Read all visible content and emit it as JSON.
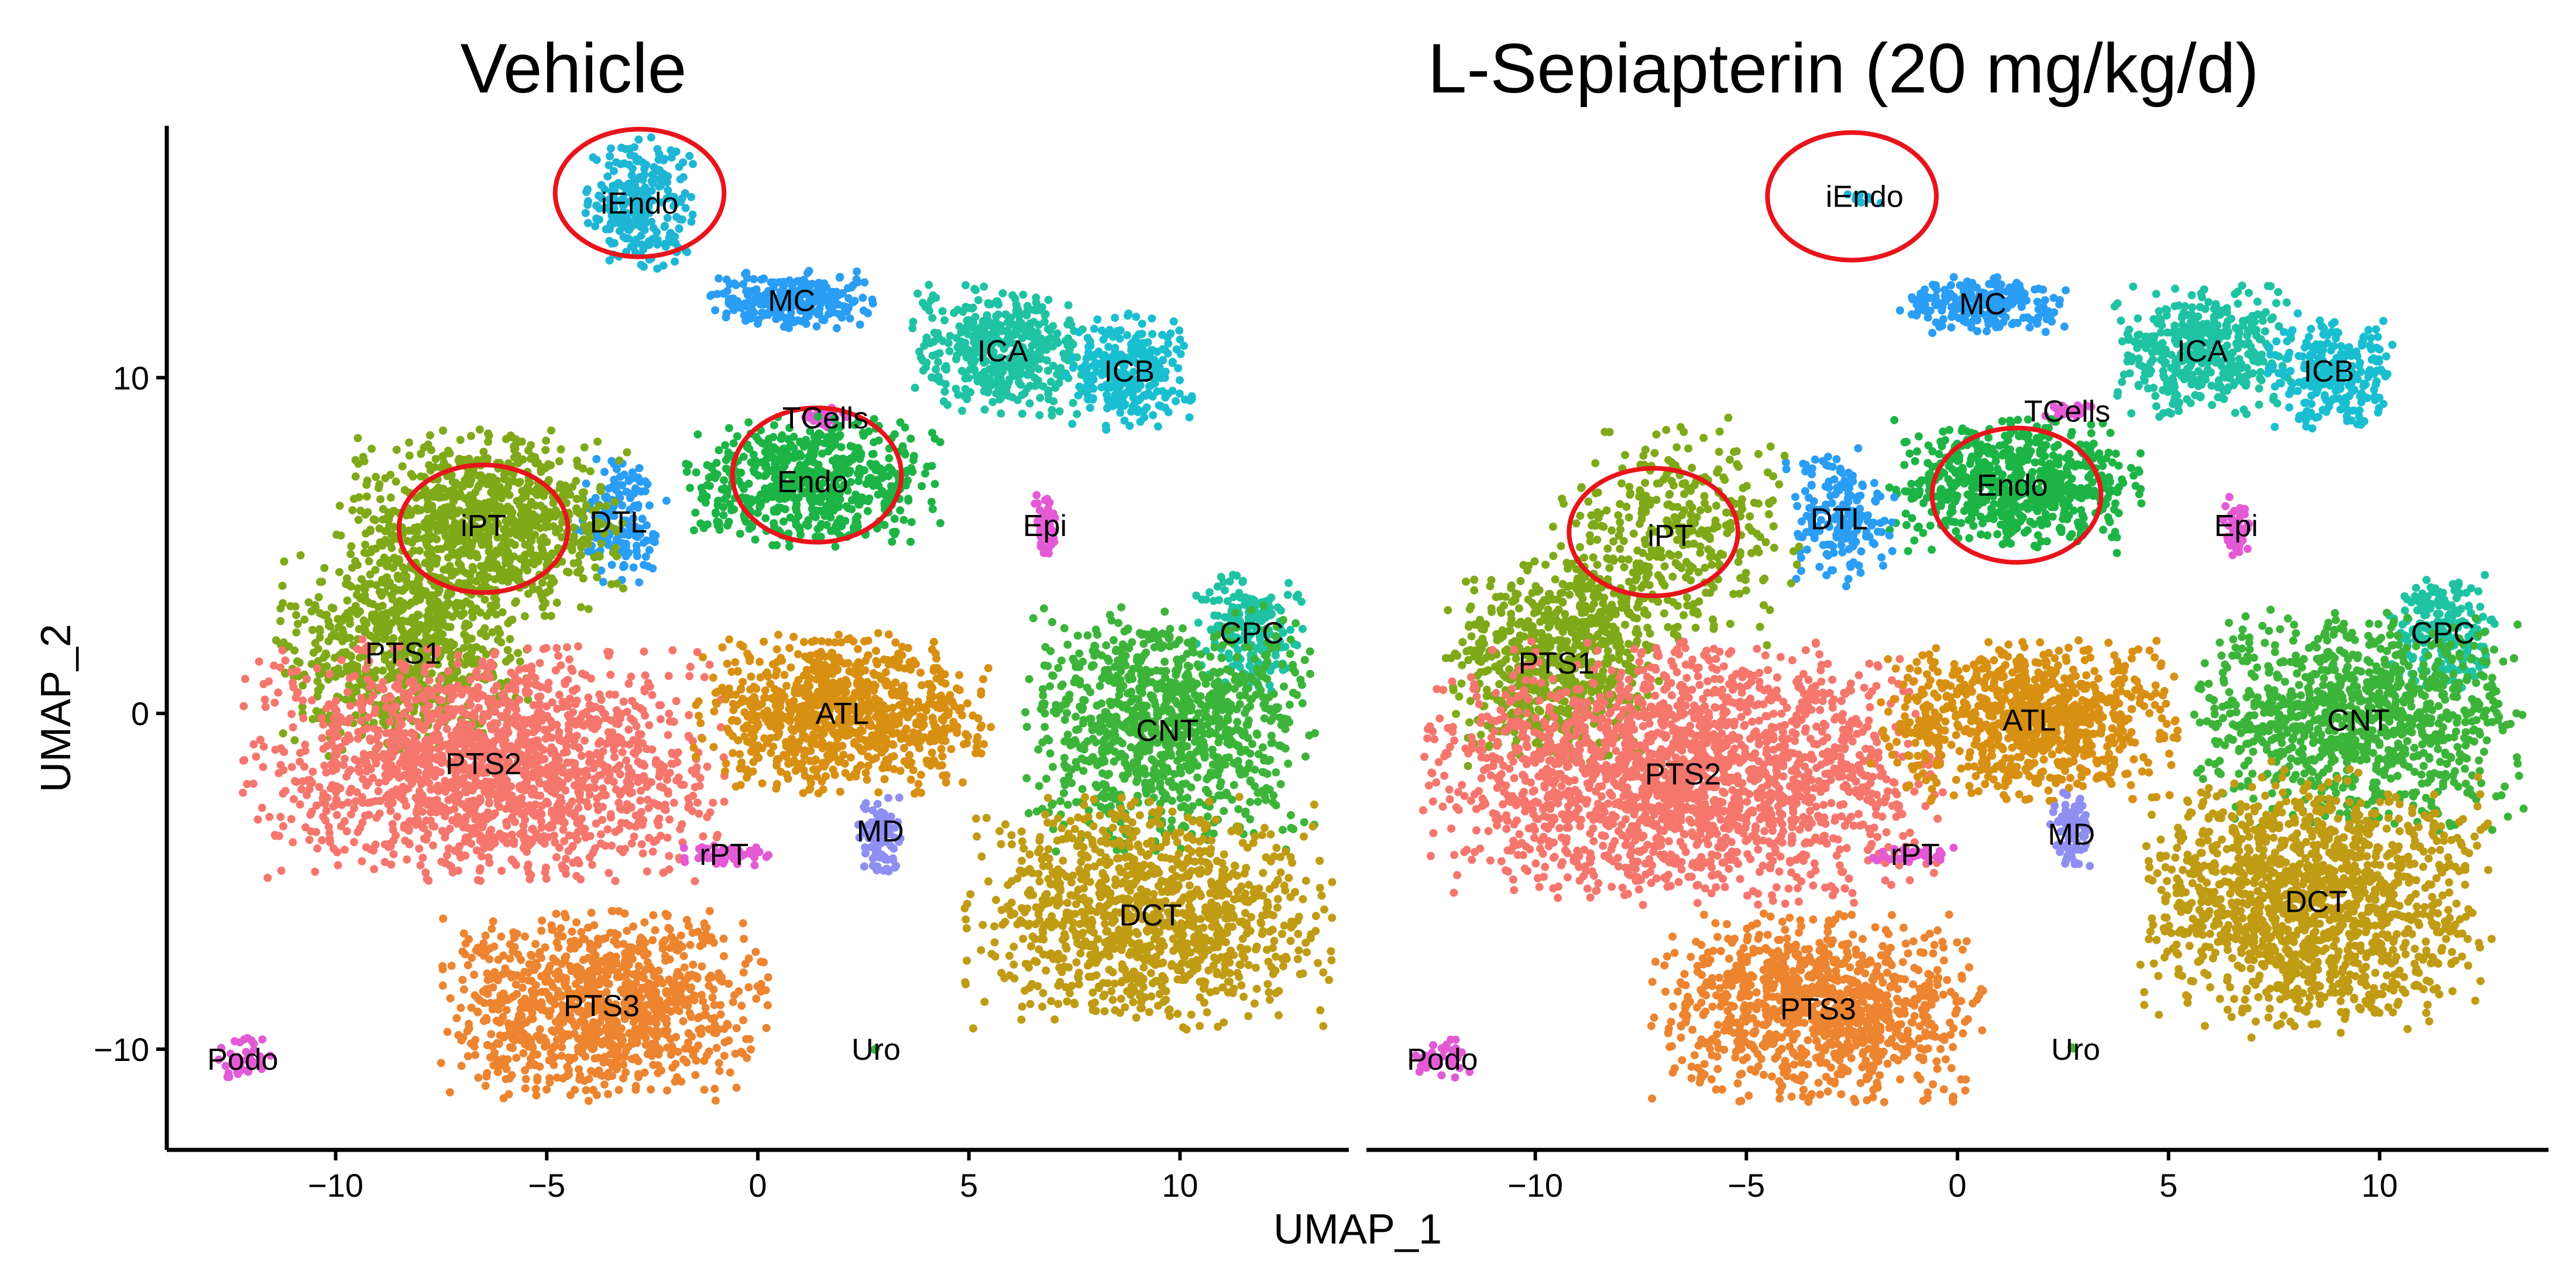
{
  "figure": {
    "xlabel": "UMAP_1",
    "ylabel": "UMAP_2"
  },
  "chart_data": [
    {
      "type": "scatter",
      "title": "Vehicle",
      "xlabel": "",
      "ylabel": "UMAP_2",
      "xlim": [
        -14,
        14
      ],
      "ylim": [
        -13,
        17.5
      ],
      "x_ticks": [
        -10,
        -5,
        0,
        5,
        10
      ],
      "y_ticks": [
        -10,
        0,
        10
      ],
      "x_tick_labels": [
        "−10",
        "−5",
        "0",
        "5",
        "10"
      ],
      "y_tick_labels": [
        "−10",
        "0",
        "10"
      ],
      "grid": false,
      "clusters": [
        {
          "label": "iEndo",
          "color": "#1fb6d6",
          "center": [
            -2.8,
            15.2
          ],
          "spread": [
            0.6,
            0.9
          ],
          "n": 260
        },
        {
          "label": "MC",
          "color": "#2a9df4",
          "center": [
            0.8,
            12.3
          ],
          "spread": [
            0.9,
            0.4
          ],
          "n": 260
        },
        {
          "label": "ICA",
          "color": "#1fc3a3",
          "center": [
            5.8,
            10.8
          ],
          "spread": [
            1.0,
            0.9
          ],
          "n": 420
        },
        {
          "label": "ICB",
          "color": "#19bfd0",
          "center": [
            8.8,
            10.2
          ],
          "spread": [
            0.7,
            0.8
          ],
          "n": 260
        },
        {
          "label": "TCells",
          "color": "#e45ad5",
          "center": [
            1.6,
            8.8
          ],
          "spread": [
            0.3,
            0.15
          ],
          "n": 30
        },
        {
          "label": "Endo",
          "color": "#1db446",
          "center": [
            1.3,
            6.9
          ],
          "spread": [
            1.4,
            0.9
          ],
          "n": 600
        },
        {
          "label": "DTL",
          "color": "#2a9df4",
          "center": [
            -3.3,
            5.7
          ],
          "spread": [
            0.5,
            0.9
          ],
          "n": 160
        },
        {
          "label": "iPT",
          "color": "#7fa918",
          "center": [
            -6.5,
            5.6
          ],
          "spread": [
            1.6,
            1.3
          ],
          "n": 900
        },
        {
          "label": "Epi",
          "color": "#e45ad5",
          "center": [
            6.8,
            5.6
          ],
          "spread": [
            0.15,
            0.5
          ],
          "n": 50
        },
        {
          "label": "PTS1",
          "color": "#7fa918",
          "center": [
            -8.4,
            1.8
          ],
          "spread": [
            1.4,
            1.4
          ],
          "n": 700
        },
        {
          "label": "PTS2",
          "color": "#f5766d",
          "center": [
            -6.5,
            -1.5
          ],
          "spread": [
            2.6,
            1.6
          ],
          "n": 1700
        },
        {
          "label": "CPC",
          "color": "#1fc3a3",
          "center": [
            11.7,
            2.4
          ],
          "spread": [
            0.6,
            0.8
          ],
          "n": 200
        },
        {
          "label": "ATL",
          "color": "#d89013",
          "center": [
            2.0,
            0.0
          ],
          "spread": [
            1.6,
            1.1
          ],
          "n": 900
        },
        {
          "label": "CNT",
          "color": "#3cb43a",
          "center": [
            9.7,
            -0.5
          ],
          "spread": [
            1.6,
            1.7
          ],
          "n": 1000
        },
        {
          "label": "MD",
          "color": "#8e8ff0",
          "center": [
            2.9,
            -3.5
          ],
          "spread": [
            0.25,
            0.6
          ],
          "n": 90
        },
        {
          "label": "rPT",
          "color": "#e45ad5",
          "center": [
            -0.8,
            -4.2
          ],
          "spread": [
            0.5,
            0.15
          ],
          "n": 60
        },
        {
          "label": "DCT",
          "color": "#c09b14",
          "center": [
            9.3,
            -6.0
          ],
          "spread": [
            2.0,
            1.6
          ],
          "n": 1100
        },
        {
          "label": "PTS3",
          "color": "#ec8430",
          "center": [
            -3.7,
            -8.7
          ],
          "spread": [
            1.8,
            1.3
          ],
          "n": 1000
        },
        {
          "label": "Uro",
          "color": "#3cb43a",
          "center": [
            2.8,
            -10.0
          ],
          "spread": [
            0.05,
            0.05
          ],
          "n": 2
        },
        {
          "label": "Podo",
          "color": "#e45ad5",
          "center": [
            -12.2,
            -10.3
          ],
          "spread": [
            0.3,
            0.3
          ],
          "n": 40
        }
      ],
      "highlight_circles": [
        {
          "target": "iEndo",
          "center": [
            -2.8,
            15.5
          ],
          "rx": 2.0,
          "ry": 1.9
        },
        {
          "target": "Endo",
          "center": [
            1.4,
            7.1
          ],
          "rx": 2.0,
          "ry": 2.0
        },
        {
          "target": "iPT",
          "center": [
            -6.5,
            5.5
          ],
          "rx": 2.0,
          "ry": 1.9
        }
      ]
    },
    {
      "type": "scatter",
      "title": "L-Sepiapterin (20 mg/kg/d)",
      "xlabel": "",
      "ylabel": "",
      "xlim": [
        -14,
        14
      ],
      "ylim": [
        -13,
        17.5
      ],
      "x_ticks": [
        -10,
        -5,
        0,
        5,
        10
      ],
      "x_tick_labels": [
        "−10",
        "−5",
        "0",
        "5",
        "10"
      ],
      "grid": false,
      "clusters": [
        {
          "label": "iEndo",
          "color": "#1fb6d6",
          "center": [
            -2.2,
            15.4
          ],
          "spread": [
            0.2,
            0.1
          ],
          "n": 10
        },
        {
          "label": "MC",
          "color": "#2a9df4",
          "center": [
            0.6,
            12.2
          ],
          "spread": [
            0.9,
            0.4
          ],
          "n": 240
        },
        {
          "label": "ICA",
          "color": "#1fc3a3",
          "center": [
            5.8,
            10.8
          ],
          "spread": [
            1.0,
            0.9
          ],
          "n": 420
        },
        {
          "label": "ICB",
          "color": "#19bfd0",
          "center": [
            8.8,
            10.2
          ],
          "spread": [
            0.7,
            0.8
          ],
          "n": 260
        },
        {
          "label": "TCells",
          "color": "#e45ad5",
          "center": [
            2.6,
            9.0
          ],
          "spread": [
            0.3,
            0.15
          ],
          "n": 30
        },
        {
          "label": "Endo",
          "color": "#1db446",
          "center": [
            1.3,
            6.8
          ],
          "spread": [
            1.4,
            0.9
          ],
          "n": 650
        },
        {
          "label": "DTL",
          "color": "#2a9df4",
          "center": [
            -2.8,
            5.8
          ],
          "spread": [
            0.6,
            1.0
          ],
          "n": 180
        },
        {
          "label": "iPT",
          "color": "#7fa918",
          "center": [
            -6.8,
            5.3
          ],
          "spread": [
            1.4,
            1.5
          ],
          "n": 380
        },
        {
          "label": "Epi",
          "color": "#e45ad5",
          "center": [
            6.6,
            5.6
          ],
          "spread": [
            0.15,
            0.5
          ],
          "n": 50
        },
        {
          "label": "PTS1",
          "color": "#7fa918",
          "center": [
            -9.5,
            1.5
          ],
          "spread": [
            1.2,
            1.4
          ],
          "n": 700
        },
        {
          "label": "PTS2",
          "color": "#f5766d",
          "center": [
            -6.5,
            -1.8
          ],
          "spread": [
            2.8,
            1.8
          ],
          "n": 2000
        },
        {
          "label": "CPC",
          "color": "#1fc3a3",
          "center": [
            11.5,
            2.4
          ],
          "spread": [
            0.6,
            0.8
          ],
          "n": 200
        },
        {
          "label": "ATL",
          "color": "#d89013",
          "center": [
            1.7,
            -0.2
          ],
          "spread": [
            1.6,
            1.1
          ],
          "n": 900
        },
        {
          "label": "CNT",
          "color": "#3cb43a",
          "center": [
            9.5,
            -0.2
          ],
          "spread": [
            1.8,
            1.5
          ],
          "n": 1000
        },
        {
          "label": "MD",
          "color": "#8e8ff0",
          "center": [
            2.7,
            -3.6
          ],
          "spread": [
            0.25,
            0.6
          ],
          "n": 90
        },
        {
          "label": "rPT",
          "color": "#e45ad5",
          "center": [
            -1.0,
            -4.2
          ],
          "spread": [
            0.5,
            0.12
          ],
          "n": 40
        },
        {
          "label": "DCT",
          "color": "#c09b14",
          "center": [
            8.5,
            -5.6
          ],
          "spread": [
            1.9,
            1.8
          ],
          "n": 1400
        },
        {
          "label": "PTS3",
          "color": "#ec8430",
          "center": [
            -3.3,
            -8.8
          ],
          "spread": [
            1.8,
            1.3
          ],
          "n": 1000
        },
        {
          "label": "Uro",
          "color": "#3cb43a",
          "center": [
            2.8,
            -10.0
          ],
          "spread": [
            0.05,
            0.05
          ],
          "n": 2
        },
        {
          "label": "Podo",
          "color": "#e45ad5",
          "center": [
            -12.2,
            -10.3
          ],
          "spread": [
            0.3,
            0.3
          ],
          "n": 40
        }
      ],
      "highlight_circles": [
        {
          "target": "iEndo",
          "center": [
            -2.5,
            15.4
          ],
          "rx": 2.0,
          "ry": 1.9
        },
        {
          "target": "Endo",
          "center": [
            1.4,
            6.5
          ],
          "rx": 2.0,
          "ry": 2.0
        },
        {
          "target": "iPT",
          "center": [
            -7.2,
            5.4
          ],
          "rx": 2.0,
          "ry": 1.9
        }
      ]
    }
  ]
}
